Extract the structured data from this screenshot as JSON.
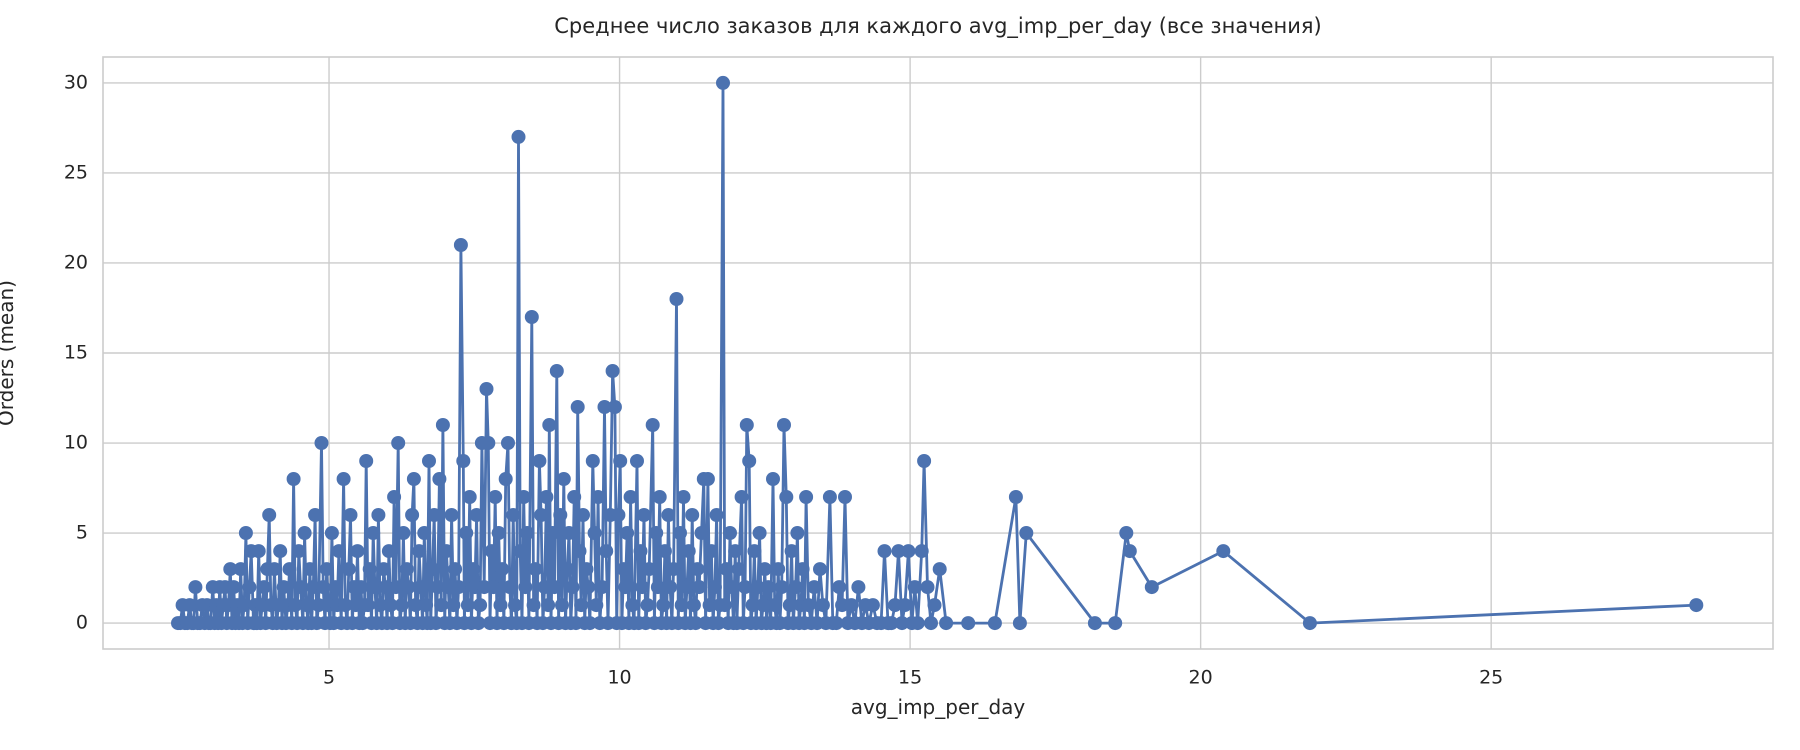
{
  "chart_data": {
    "type": "line",
    "title": "Среднее число заказов для каждого avg_imp_per_day (все значения)",
    "xlabel": "avg_imp_per_day",
    "ylabel": "Orders (mean)",
    "legend": null,
    "grid": true,
    "marker": "circle",
    "colors": {
      "series": "#4c72b0",
      "grid": "#cccccc",
      "spine": "#cccccc",
      "text": "#262626",
      "background": "#ffffff"
    },
    "xlim": [
      1.11,
      29.85
    ],
    "ylim": [
      -1.44,
      31.44
    ],
    "xticks": [
      5,
      10,
      15,
      20,
      25
    ],
    "yticks": [
      0,
      5,
      10,
      15,
      20,
      25,
      30
    ],
    "points": [
      [
        2.4,
        0
      ],
      [
        2.44,
        0
      ],
      [
        2.48,
        1
      ],
      [
        2.52,
        0
      ],
      [
        2.56,
        0
      ],
      [
        2.6,
        1
      ],
      [
        2.64,
        0
      ],
      [
        2.67,
        0
      ],
      [
        2.7,
        2
      ],
      [
        2.74,
        0
      ],
      [
        2.78,
        0
      ],
      [
        2.82,
        1
      ],
      [
        2.86,
        0
      ],
      [
        2.9,
        1
      ],
      [
        2.93,
        0
      ],
      [
        2.96,
        0
      ],
      [
        3.0,
        2
      ],
      [
        3.03,
        0
      ],
      [
        3.06,
        1
      ],
      [
        3.09,
        0
      ],
      [
        3.12,
        2
      ],
      [
        3.15,
        0
      ],
      [
        3.18,
        1
      ],
      [
        3.21,
        2
      ],
      [
        3.24,
        0
      ],
      [
        3.27,
        1
      ],
      [
        3.3,
        3
      ],
      [
        3.33,
        0
      ],
      [
        3.36,
        2
      ],
      [
        3.39,
        0
      ],
      [
        3.42,
        1
      ],
      [
        3.45,
        0
      ],
      [
        3.48,
        3
      ],
      [
        3.51,
        0
      ],
      [
        3.54,
        1
      ],
      [
        3.57,
        5
      ],
      [
        3.6,
        0
      ],
      [
        3.63,
        2
      ],
      [
        3.66,
        4
      ],
      [
        3.7,
        0
      ],
      [
        3.73,
        1
      ],
      [
        3.76,
        0
      ],
      [
        3.79,
        4
      ],
      [
        3.82,
        0
      ],
      [
        3.85,
        1
      ],
      [
        3.88,
        2
      ],
      [
        3.91,
        0
      ],
      [
        3.94,
        3
      ],
      [
        3.97,
        6
      ],
      [
        4.0,
        1
      ],
      [
        4.03,
        0
      ],
      [
        4.06,
        3
      ],
      [
        4.1,
        0
      ],
      [
        4.13,
        1
      ],
      [
        4.16,
        4
      ],
      [
        4.19,
        0
      ],
      [
        4.22,
        2
      ],
      [
        4.26,
        0
      ],
      [
        4.29,
        1
      ],
      [
        4.32,
        3
      ],
      [
        4.36,
        0
      ],
      [
        4.39,
        8
      ],
      [
        4.42,
        1
      ],
      [
        4.45,
        0
      ],
      [
        4.48,
        4
      ],
      [
        4.51,
        2
      ],
      [
        4.55,
        0
      ],
      [
        4.58,
        5
      ],
      [
        4.61,
        1
      ],
      [
        4.64,
        0
      ],
      [
        4.67,
        3
      ],
      [
        4.7,
        0
      ],
      [
        4.73,
        2
      ],
      [
        4.76,
        6
      ],
      [
        4.79,
        0
      ],
      [
        4.82,
        1
      ],
      [
        4.87,
        10
      ],
      [
        4.9,
        2
      ],
      [
        4.93,
        0
      ],
      [
        4.96,
        3
      ],
      [
        4.99,
        1
      ],
      [
        5.02,
        0
      ],
      [
        5.05,
        5
      ],
      [
        5.08,
        0
      ],
      [
        5.11,
        2
      ],
      [
        5.14,
        1
      ],
      [
        5.17,
        4
      ],
      [
        5.21,
        0
      ],
      [
        5.25,
        8
      ],
      [
        5.28,
        1
      ],
      [
        5.31,
        0
      ],
      [
        5.34,
        3
      ],
      [
        5.37,
        6
      ],
      [
        5.4,
        0
      ],
      [
        5.43,
        2
      ],
      [
        5.46,
        1
      ],
      [
        5.49,
        4
      ],
      [
        5.52,
        0
      ],
      [
        5.55,
        2
      ],
      [
        5.58,
        0
      ],
      [
        5.61,
        1
      ],
      [
        5.64,
        9
      ],
      [
        5.67,
        1
      ],
      [
        5.7,
        3
      ],
      [
        5.73,
        0
      ],
      [
        5.76,
        5
      ],
      [
        5.79,
        2
      ],
      [
        5.82,
        0
      ],
      [
        5.85,
        6
      ],
      [
        5.88,
        1
      ],
      [
        5.91,
        0
      ],
      [
        5.94,
        3
      ],
      [
        5.97,
        2
      ],
      [
        6.0,
        0
      ],
      [
        6.03,
        4
      ],
      [
        6.06,
        1
      ],
      [
        6.09,
        0
      ],
      [
        6.12,
        7
      ],
      [
        6.15,
        2
      ],
      [
        6.19,
        10
      ],
      [
        6.22,
        0
      ],
      [
        6.25,
        1
      ],
      [
        6.28,
        5
      ],
      [
        6.31,
        0
      ],
      [
        6.34,
        3
      ],
      [
        6.37,
        2
      ],
      [
        6.4,
        0
      ],
      [
        6.43,
        6
      ],
      [
        6.46,
        8
      ],
      [
        6.49,
        1
      ],
      [
        6.52,
        0
      ],
      [
        6.55,
        4
      ],
      [
        6.58,
        2
      ],
      [
        6.61,
        0
      ],
      [
        6.64,
        5
      ],
      [
        6.67,
        1
      ],
      [
        6.69,
        0
      ],
      [
        6.72,
        9
      ],
      [
        6.75,
        0
      ],
      [
        6.78,
        3
      ],
      [
        6.81,
        6
      ],
      [
        6.84,
        0
      ],
      [
        6.87,
        2
      ],
      [
        6.9,
        8
      ],
      [
        6.93,
        1
      ],
      [
        6.96,
        11
      ],
      [
        6.99,
        0
      ],
      [
        7.02,
        4
      ],
      [
        7.05,
        2
      ],
      [
        7.08,
        0
      ],
      [
        7.11,
        6
      ],
      [
        7.14,
        1
      ],
      [
        7.17,
        3
      ],
      [
        7.2,
        0
      ],
      [
        7.23,
        2
      ],
      [
        7.27,
        21
      ],
      [
        7.31,
        9
      ],
      [
        7.33,
        0
      ],
      [
        7.36,
        5
      ],
      [
        7.39,
        1
      ],
      [
        7.42,
        7
      ],
      [
        7.45,
        0
      ],
      [
        7.48,
        3
      ],
      [
        7.51,
        2
      ],
      [
        7.54,
        6
      ],
      [
        7.57,
        0
      ],
      [
        7.6,
        1
      ],
      [
        7.63,
        10
      ],
      [
        7.67,
        2
      ],
      [
        7.71,
        13
      ],
      [
        7.74,
        10
      ],
      [
        7.77,
        0
      ],
      [
        7.8,
        4
      ],
      [
        7.83,
        2
      ],
      [
        7.86,
        7
      ],
      [
        7.89,
        0
      ],
      [
        7.92,
        5
      ],
      [
        7.95,
        1
      ],
      [
        7.98,
        3
      ],
      [
        8.01,
        0
      ],
      [
        8.04,
        8
      ],
      [
        8.08,
        10
      ],
      [
        8.11,
        2
      ],
      [
        8.14,
        0
      ],
      [
        8.17,
        6
      ],
      [
        8.2,
        1
      ],
      [
        8.23,
        0
      ],
      [
        8.26,
        27
      ],
      [
        8.29,
        4
      ],
      [
        8.32,
        0
      ],
      [
        8.35,
        7
      ],
      [
        8.38,
        2
      ],
      [
        8.41,
        5
      ],
      [
        8.44,
        0
      ],
      [
        8.49,
        17
      ],
      [
        8.52,
        1
      ],
      [
        8.55,
        3
      ],
      [
        8.58,
        0
      ],
      [
        8.62,
        9
      ],
      [
        8.65,
        6
      ],
      [
        8.68,
        0
      ],
      [
        8.71,
        2
      ],
      [
        8.74,
        7
      ],
      [
        8.77,
        1
      ],
      [
        8.79,
        11
      ],
      [
        8.82,
        0
      ],
      [
        8.85,
        5
      ],
      [
        8.88,
        2
      ],
      [
        8.92,
        14
      ],
      [
        8.95,
        0
      ],
      [
        8.98,
        6
      ],
      [
        9.01,
        1
      ],
      [
        9.04,
        8
      ],
      [
        9.07,
        0
      ],
      [
        9.1,
        3
      ],
      [
        9.13,
        5
      ],
      [
        9.16,
        0
      ],
      [
        9.19,
        2
      ],
      [
        9.22,
        7
      ],
      [
        9.25,
        0
      ],
      [
        9.28,
        12
      ],
      [
        9.31,
        4
      ],
      [
        9.34,
        1
      ],
      [
        9.37,
        6
      ],
      [
        9.4,
        0
      ],
      [
        9.43,
        3
      ],
      [
        9.46,
        2
      ],
      [
        9.49,
        0
      ],
      [
        9.54,
        9
      ],
      [
        9.57,
        5
      ],
      [
        9.6,
        1
      ],
      [
        9.63,
        7
      ],
      [
        9.66,
        0
      ],
      [
        9.7,
        2
      ],
      [
        9.74,
        12
      ],
      [
        9.77,
        4
      ],
      [
        9.8,
        0
      ],
      [
        9.84,
        6
      ],
      [
        9.88,
        14
      ],
      [
        9.92,
        12
      ],
      [
        9.95,
        0
      ],
      [
        9.98,
        6
      ],
      [
        10.01,
        9
      ],
      [
        10.04,
        0
      ],
      [
        10.07,
        3
      ],
      [
        10.1,
        2
      ],
      [
        10.13,
        5
      ],
      [
        10.16,
        0
      ],
      [
        10.19,
        7
      ],
      [
        10.22,
        1
      ],
      [
        10.25,
        0
      ],
      [
        10.3,
        9
      ],
      [
        10.33,
        0
      ],
      [
        10.36,
        4
      ],
      [
        10.39,
        2
      ],
      [
        10.42,
        6
      ],
      [
        10.45,
        0
      ],
      [
        10.48,
        1
      ],
      [
        10.51,
        3
      ],
      [
        10.57,
        11
      ],
      [
        10.6,
        0
      ],
      [
        10.63,
        5
      ],
      [
        10.66,
        2
      ],
      [
        10.69,
        7
      ],
      [
        10.72,
        0
      ],
      [
        10.75,
        1
      ],
      [
        10.78,
        4
      ],
      [
        10.81,
        0
      ],
      [
        10.84,
        6
      ],
      [
        10.87,
        2
      ],
      [
        10.9,
        0
      ],
      [
        10.93,
        3
      ],
      [
        10.98,
        18
      ],
      [
        11.01,
        0
      ],
      [
        11.04,
        5
      ],
      [
        11.07,
        1
      ],
      [
        11.1,
        7
      ],
      [
        11.13,
        0
      ],
      [
        11.16,
        2
      ],
      [
        11.19,
        4
      ],
      [
        11.22,
        0
      ],
      [
        11.25,
        6
      ],
      [
        11.28,
        1
      ],
      [
        11.31,
        0
      ],
      [
        11.34,
        3
      ],
      [
        11.37,
        2
      ],
      [
        11.41,
        5
      ],
      [
        11.45,
        8
      ],
      [
        11.48,
        0
      ],
      [
        11.52,
        8
      ],
      [
        11.55,
        1
      ],
      [
        11.58,
        4
      ],
      [
        11.61,
        0
      ],
      [
        11.64,
        2
      ],
      [
        11.67,
        6
      ],
      [
        11.7,
        0
      ],
      [
        11.73,
        1
      ],
      [
        11.78,
        30
      ],
      [
        11.81,
        1
      ],
      [
        11.84,
        3
      ],
      [
        11.87,
        0
      ],
      [
        11.9,
        5
      ],
      [
        11.93,
        2
      ],
      [
        11.96,
        0
      ],
      [
        11.99,
        4
      ],
      [
        12.02,
        0
      ],
      [
        12.05,
        3
      ],
      [
        12.1,
        7
      ],
      [
        12.13,
        0
      ],
      [
        12.16,
        2
      ],
      [
        12.19,
        11
      ],
      [
        12.23,
        9
      ],
      [
        12.26,
        0
      ],
      [
        12.29,
        1
      ],
      [
        12.32,
        4
      ],
      [
        12.35,
        0
      ],
      [
        12.38,
        2
      ],
      [
        12.41,
        5
      ],
      [
        12.44,
        0
      ],
      [
        12.47,
        1
      ],
      [
        12.5,
        3
      ],
      [
        12.53,
        0
      ],
      [
        12.56,
        2
      ],
      [
        12.6,
        0
      ],
      [
        12.64,
        8
      ],
      [
        12.67,
        1
      ],
      [
        12.7,
        0
      ],
      [
        12.73,
        3
      ],
      [
        12.76,
        0
      ],
      [
        12.79,
        2
      ],
      [
        12.83,
        11
      ],
      [
        12.87,
        7
      ],
      [
        12.9,
        0
      ],
      [
        12.93,
        1
      ],
      [
        12.96,
        4
      ],
      [
        12.99,
        0
      ],
      [
        13.03,
        2
      ],
      [
        13.06,
        5
      ],
      [
        13.09,
        0
      ],
      [
        13.12,
        1
      ],
      [
        13.15,
        3
      ],
      [
        13.18,
        0
      ],
      [
        13.21,
        7
      ],
      [
        13.25,
        1
      ],
      [
        13.3,
        0
      ],
      [
        13.35,
        2
      ],
      [
        13.4,
        0
      ],
      [
        13.45,
        3
      ],
      [
        13.5,
        1
      ],
      [
        13.55,
        0
      ],
      [
        13.62,
        7
      ],
      [
        13.67,
        0
      ],
      [
        13.73,
        0
      ],
      [
        13.78,
        2
      ],
      [
        13.83,
        1
      ],
      [
        13.88,
        7
      ],
      [
        13.93,
        0
      ],
      [
        13.99,
        1
      ],
      [
        14.05,
        0
      ],
      [
        14.11,
        2
      ],
      [
        14.17,
        0
      ],
      [
        14.23,
        1
      ],
      [
        14.29,
        0
      ],
      [
        14.36,
        1
      ],
      [
        14.43,
        0
      ],
      [
        14.5,
        0
      ],
      [
        14.56,
        4
      ],
      [
        14.62,
        0
      ],
      [
        14.68,
        0
      ],
      [
        14.74,
        1
      ],
      [
        14.8,
        4
      ],
      [
        14.86,
        0
      ],
      [
        14.91,
        1
      ],
      [
        14.97,
        4
      ],
      [
        15.03,
        0
      ],
      [
        15.08,
        2
      ],
      [
        15.13,
        0
      ],
      [
        15.2,
        4
      ],
      [
        15.24,
        9
      ],
      [
        15.3,
        2
      ],
      [
        15.36,
        0
      ],
      [
        15.42,
        1
      ],
      [
        15.51,
        3
      ],
      [
        15.62,
        0
      ],
      [
        16.0,
        0
      ],
      [
        16.46,
        0
      ],
      [
        16.82,
        7
      ],
      [
        16.89,
        0
      ],
      [
        17.0,
        5
      ],
      [
        18.18,
        0
      ],
      [
        18.53,
        0
      ],
      [
        18.72,
        5
      ],
      [
        18.78,
        4
      ],
      [
        19.16,
        2
      ],
      [
        20.39,
        4
      ],
      [
        21.88,
        0
      ],
      [
        28.53,
        1
      ]
    ]
  }
}
